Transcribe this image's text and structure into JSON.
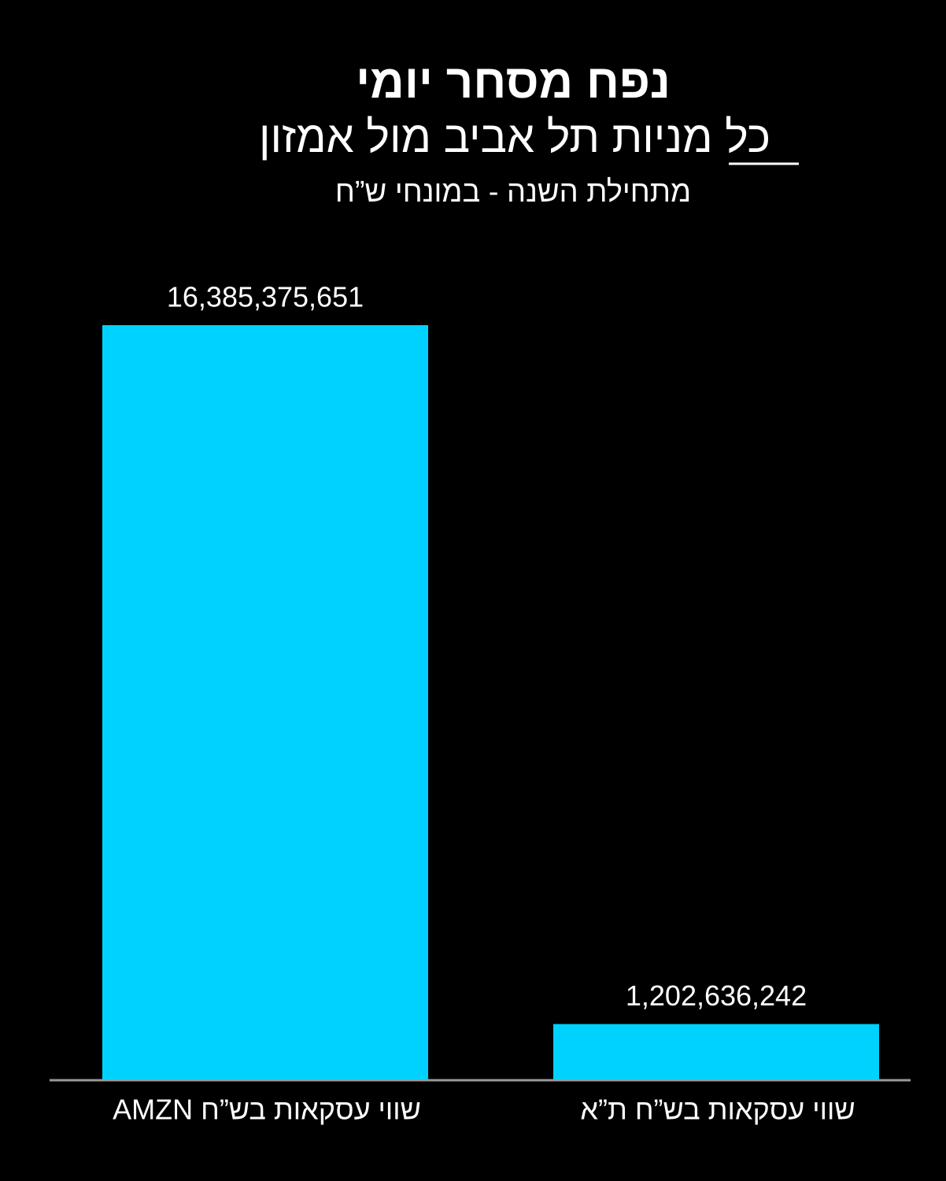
{
  "chart_data": {
    "type": "bar",
    "title": "נפח מסחר יומי",
    "subtitle": "כל מניות תל אביב מול אמזון",
    "note": "מתחילת השנה - במונחי ש”ח",
    "categories": [
      "שווי עסקאות בש”ח AMZN",
      "שווי עסקאות בש”ח ת”א"
    ],
    "values": [
      16385375651,
      1202636242
    ],
    "value_labels": [
      "16,385,375,651",
      "1,202,636,242"
    ],
    "color": "#00d2ff"
  }
}
